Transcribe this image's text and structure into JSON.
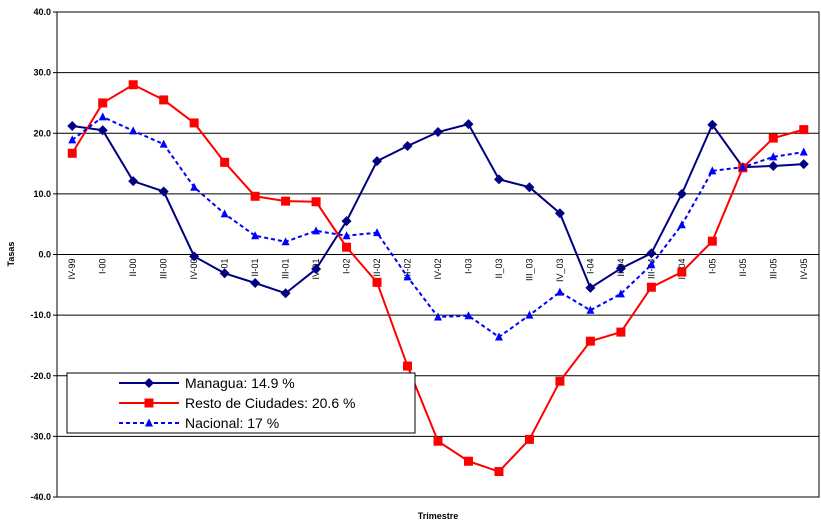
{
  "chart_data": {
    "type": "line",
    "y_label": "Tasas",
    "x_label": "Trimestre",
    "categories": [
      "IV-99",
      "I-00",
      "II-00",
      "III-00",
      "IV-00",
      "I-01",
      "II-01",
      "III-01",
      "IV-01",
      "I-02",
      "II-02",
      "III-02",
      "IV-02",
      "I-03",
      "II_03",
      "III_03",
      "IV_03",
      "I-04",
      "II-04",
      "III-04",
      "IV-04",
      "I-05",
      "II-05",
      "III-05",
      "IV-05"
    ],
    "series": [
      {
        "name": "Managua: 14.9 %",
        "color": "#000080",
        "marker": "diamond",
        "dashed": false,
        "values": [
          21.2,
          20.5,
          12.1,
          10.4,
          -0.3,
          -3.1,
          -4.7,
          -6.4,
          -2.4,
          5.5,
          15.4,
          17.9,
          20.2,
          21.5,
          12.4,
          11.1,
          6.8,
          -5.5,
          -2.3,
          0.2,
          10.0,
          21.4,
          14.4,
          14.6,
          14.9
        ]
      },
      {
        "name": "Resto de Ciudades: 20.6 %",
        "color": "#ff0000",
        "marker": "square",
        "dashed": false,
        "values": [
          16.7,
          25.0,
          28.0,
          25.5,
          21.7,
          15.2,
          9.6,
          8.8,
          8.7,
          1.2,
          -4.6,
          -18.4,
          -30.8,
          -34.1,
          -35.8,
          -30.5,
          -20.9,
          -14.3,
          -12.8,
          -5.4,
          -2.9,
          2.2,
          14.3,
          19.2,
          20.6
        ]
      },
      {
        "name": "Nacional: 17 %",
        "color": "#0000ff",
        "marker": "triangle",
        "dashed": true,
        "values": [
          18.9,
          22.7,
          20.4,
          18.2,
          11.1,
          6.7,
          3.1,
          2.1,
          3.9,
          3.1,
          3.6,
          -3.7,
          -10.3,
          -10.1,
          -13.6,
          -10.0,
          -6.2,
          -9.2,
          -6.5,
          -1.7,
          4.9,
          13.8,
          14.4,
          16.1,
          16.9
        ]
      }
    ],
    "ylim": [
      -40,
      40
    ],
    "yticks": [
      {
        "value": -40,
        "label": "-40.0"
      },
      {
        "value": -30,
        "label": "-30.0"
      },
      {
        "value": -20,
        "label": "-20.0"
      },
      {
        "value": -10,
        "label": "-10.0"
      },
      {
        "value": 0,
        "label": "0.0"
      },
      {
        "value": 10,
        "label": "10.0"
      },
      {
        "value": 20,
        "label": "20.0"
      },
      {
        "value": 30,
        "label": "30.0"
      },
      {
        "value": 40,
        "label": "40.0"
      }
    ],
    "grid": true
  }
}
